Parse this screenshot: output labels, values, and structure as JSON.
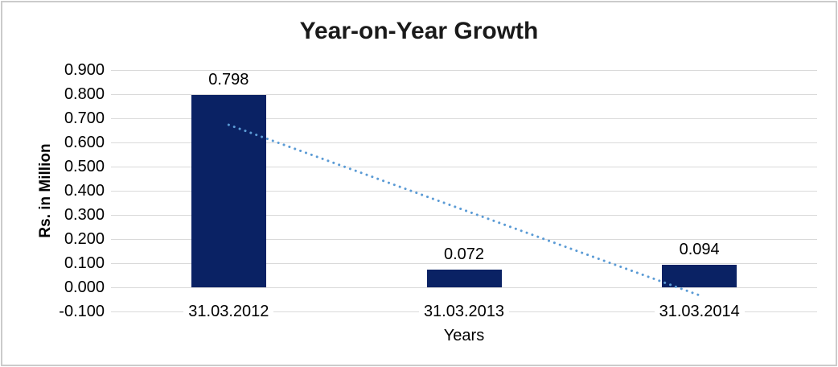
{
  "chart_data": {
    "type": "bar",
    "title": "Year-on-Year Growth",
    "xlabel": "Years",
    "ylabel": "Rs. in Million",
    "categories": [
      "31.03.2012",
      "31.03.2013",
      "31.03.2014"
    ],
    "values": [
      0.798,
      0.072,
      0.094
    ],
    "value_labels": [
      "0.798",
      "0.072",
      "0.094"
    ],
    "ylim": [
      -0.1,
      0.9
    ],
    "ytick_labels": [
      "0.900",
      "0.800",
      "0.700",
      "0.600",
      "0.500",
      "0.400",
      "0.300",
      "0.200",
      "0.100",
      "0.000",
      "-0.100"
    ],
    "ytick_values": [
      0.9,
      0.8,
      0.7,
      0.6,
      0.5,
      0.4,
      0.3,
      0.2,
      0.1,
      0.0,
      -0.1
    ],
    "grid": true,
    "legend": false,
    "trendline": {
      "style": "dotted",
      "start_value": 0.673,
      "end_value": -0.033
    },
    "colors": {
      "bar": "#0a2264",
      "gridline": "#d9d9d9",
      "trendline": "#5b9bd5",
      "title_text": "#1a1a1a",
      "text": "#000000",
      "frame_border": "#cbcbcb",
      "background": "#ffffff"
    }
  }
}
